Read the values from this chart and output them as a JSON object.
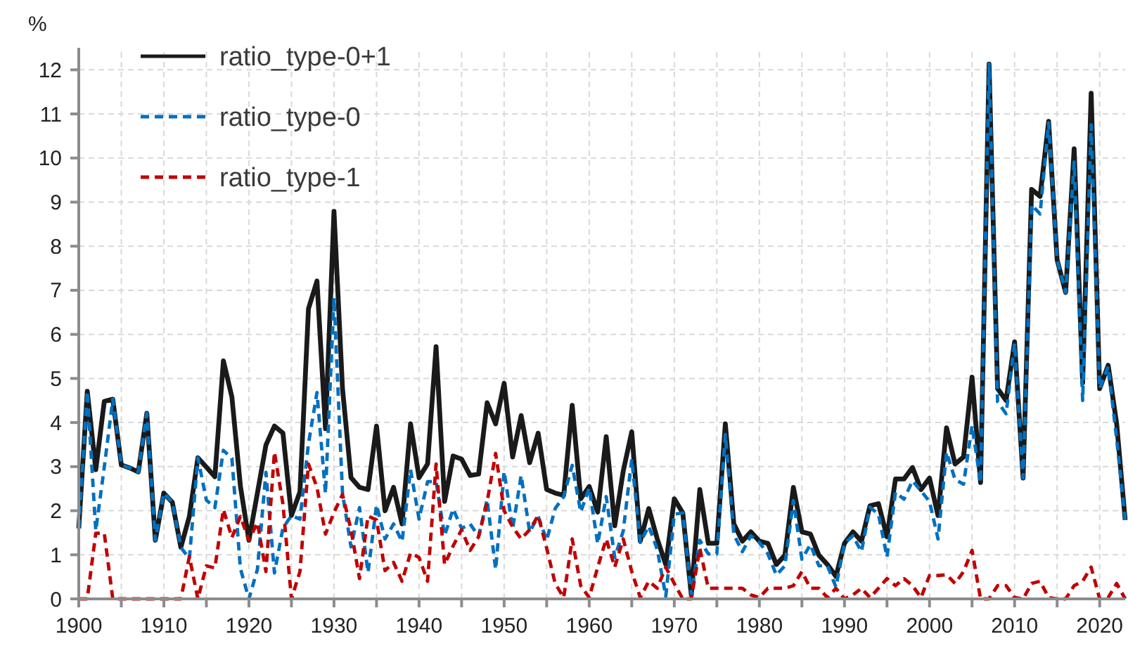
{
  "chart_data": {
    "type": "line",
    "ylabel": "%",
    "x": [
      1900,
      1901,
      1902,
      1903,
      1904,
      1905,
      1906,
      1907,
      1908,
      1909,
      1910,
      1911,
      1912,
      1913,
      1914,
      1915,
      1916,
      1917,
      1918,
      1919,
      1920,
      1921,
      1922,
      1923,
      1924,
      1925,
      1926,
      1927,
      1928,
      1929,
      1930,
      1931,
      1932,
      1933,
      1934,
      1935,
      1936,
      1937,
      1938,
      1939,
      1940,
      1941,
      1942,
      1943,
      1944,
      1945,
      1946,
      1947,
      1948,
      1949,
      1950,
      1951,
      1952,
      1953,
      1954,
      1955,
      1956,
      1957,
      1958,
      1959,
      1960,
      1961,
      1962,
      1963,
      1964,
      1965,
      1966,
      1967,
      1968,
      1969,
      1970,
      1971,
      1972,
      1973,
      1974,
      1975,
      1976,
      1977,
      1978,
      1979,
      1980,
      1981,
      1982,
      1983,
      1984,
      1985,
      1986,
      1987,
      1988,
      1989,
      1990,
      1991,
      1992,
      1993,
      1994,
      1995,
      1996,
      1997,
      1998,
      1999,
      2000,
      2001,
      2002,
      2003,
      2004,
      2005,
      2006,
      2007,
      2008,
      2009,
      2010,
      2011,
      2012,
      2013,
      2014,
      2015,
      2016,
      2017,
      2018,
      2019,
      2020,
      2021,
      2022,
      2023
    ],
    "series": [
      {
        "name": "ratio_type-0+1",
        "color": "#1a1a1a",
        "line_style": "solid",
        "values": [
          1.6,
          4.71,
          2.93,
          4.48,
          4.53,
          3.04,
          2.97,
          2.88,
          4.21,
          1.33,
          2.4,
          2.19,
          1.17,
          1.87,
          3.2,
          2.99,
          2.77,
          5.4,
          4.58,
          2.56,
          1.33,
          2.4,
          3.49,
          3.92,
          3.76,
          1.89,
          2.43,
          6.58,
          7.21,
          3.86,
          8.79,
          4.77,
          2.75,
          2.53,
          2.48,
          3.92,
          2.0,
          2.53,
          1.7,
          3.97,
          2.75,
          3.06,
          5.72,
          2.21,
          3.24,
          3.17,
          2.8,
          2.83,
          4.45,
          3.97,
          4.89,
          3.22,
          4.16,
          3.09,
          3.76,
          2.48,
          2.4,
          2.35,
          4.39,
          2.27,
          2.55,
          1.97,
          3.68,
          1.66,
          2.9,
          3.79,
          1.31,
          2.05,
          1.36,
          0.78,
          2.27,
          1.95,
          0.09,
          2.48,
          1.26,
          1.26,
          3.97,
          1.7,
          1.31,
          1.52,
          1.31,
          1.26,
          0.78,
          0.99,
          2.53,
          1.52,
          1.47,
          0.99,
          0.78,
          0.51,
          1.26,
          1.52,
          1.31,
          2.11,
          2.16,
          1.41,
          2.72,
          2.72,
          2.98,
          2.48,
          2.74,
          1.89,
          3.88,
          3.06,
          3.22,
          5.03,
          2.64,
          12.13,
          4.77,
          4.5,
          5.83,
          2.74,
          9.29,
          9.13,
          10.83,
          7.69,
          6.95,
          10.21,
          4.9,
          11.47,
          4.77,
          5.3,
          3.97,
          1.79
        ]
      },
      {
        "name": "ratio_type-0",
        "color": "#0070c0",
        "line_style": "dashed",
        "values": [
          1.6,
          4.71,
          1.55,
          2.99,
          4.53,
          3.04,
          2.97,
          2.88,
          4.21,
          1.33,
          2.4,
          2.19,
          1.17,
          0.91,
          3.2,
          2.24,
          2.07,
          3.37,
          3.19,
          0.69,
          0,
          0.67,
          2.87,
          0.59,
          1.61,
          1.89,
          1.81,
          3.52,
          4.68,
          2.39,
          6.83,
          2.4,
          1.18,
          2.07,
          0.6,
          2.13,
          1.36,
          1.7,
          1.3,
          2.93,
          1.81,
          2.66,
          2.66,
          1.43,
          2.04,
          1.6,
          1.7,
          1.42,
          2.25,
          0.67,
          2.89,
          1.59,
          2.8,
          1.52,
          1.87,
          1.33,
          2.05,
          2.32,
          3.03,
          1.97,
          2.52,
          1.25,
          2.32,
          0.94,
          1.54,
          3.17,
          1.28,
          1.65,
          1.12,
          0.06,
          1.92,
          1.95,
          0.09,
          1.33,
          1.02,
          1.02,
          3.73,
          1.46,
          1.07,
          1.43,
          1.28,
          1.02,
          0.54,
          0.75,
          2.23,
          0.9,
          1.23,
          0.75,
          0.75,
          0.27,
          1.26,
          1.43,
          1.07,
          2.08,
          1.92,
          0.95,
          2.42,
          2.26,
          2.68,
          2.45,
          2.21,
          1.36,
          3.33,
          2.71,
          2.6,
          3.93,
          2.64,
          12.13,
          4.47,
          4.2,
          5.8,
          2.74,
          8.94,
          8.73,
          10.8,
          7.69,
          6.95,
          9.91,
          4.5,
          10.75,
          4.77,
          5.27,
          3.62,
          1.79
        ]
      },
      {
        "name": "ratio_type-1",
        "color": "#c00000",
        "line_style": "dashed",
        "values": [
          0,
          0,
          1.49,
          1.49,
          0,
          0,
          0,
          0,
          0,
          0,
          0,
          0,
          0,
          0.96,
          0,
          0.75,
          0.7,
          2.03,
          1.39,
          1.87,
          1.33,
          1.73,
          0.62,
          3.33,
          2.15,
          0,
          0.62,
          3.06,
          2.53,
          1.47,
          1.96,
          2.37,
          1.57,
          0.46,
          1.88,
          1.79,
          0.64,
          0.83,
          0.4,
          1.04,
          0.94,
          0.4,
          3.06,
          0.78,
          1.2,
          1.57,
          1.1,
          1.41,
          2.2,
          3.3,
          2.0,
          1.63,
          1.36,
          1.57,
          1.89,
          1.15,
          0.35,
          0.03,
          1.36,
          0.3,
          0.03,
          0.72,
          1.36,
          0.72,
          1.36,
          0.62,
          0.03,
          0.4,
          0.24,
          0.72,
          0.35,
          0,
          0,
          1.15,
          0.24,
          0.24,
          0.24,
          0.24,
          0.24,
          0.09,
          0.03,
          0.24,
          0.24,
          0.24,
          0.3,
          0.62,
          0.24,
          0.24,
          0.03,
          0.24,
          0,
          0.09,
          0.24,
          0.03,
          0.24,
          0.46,
          0.3,
          0.46,
          0.3,
          0.03,
          0.53,
          0.53,
          0.55,
          0.35,
          0.62,
          1.1,
          0,
          0,
          0.3,
          0.3,
          0.03,
          0,
          0.35,
          0.4,
          0.03,
          0,
          0,
          0.3,
          0.4,
          0.72,
          0,
          0.03,
          0.35,
          0
        ]
      }
    ],
    "xlim": [
      1900,
      2023
    ],
    "xticks": [
      1900,
      {
        "value": 1905,
        "label": null
      },
      1910,
      {
        "value": 1915,
        "label": null
      },
      1920,
      {
        "value": 1925,
        "label": null
      },
      1930,
      {
        "value": 1935,
        "label": null
      },
      1940,
      {
        "value": 1945,
        "label": null
      },
      1950,
      {
        "value": 1955,
        "label": null
      },
      1960,
      {
        "value": 1965,
        "label": null
      },
      1970,
      {
        "value": 1975,
        "label": null
      },
      1980,
      {
        "value": 1985,
        "label": null
      },
      1990,
      {
        "value": 1995,
        "label": null
      },
      2000,
      {
        "value": 2005,
        "label": null
      },
      2010,
      {
        "value": 2015,
        "label": null
      },
      2020
    ],
    "ylim": [
      0,
      12.5
    ],
    "yticks": [
      0,
      1,
      2,
      3,
      4,
      5,
      6,
      7,
      8,
      9,
      10,
      11,
      12
    ],
    "grid": true,
    "legend": "top left"
  }
}
